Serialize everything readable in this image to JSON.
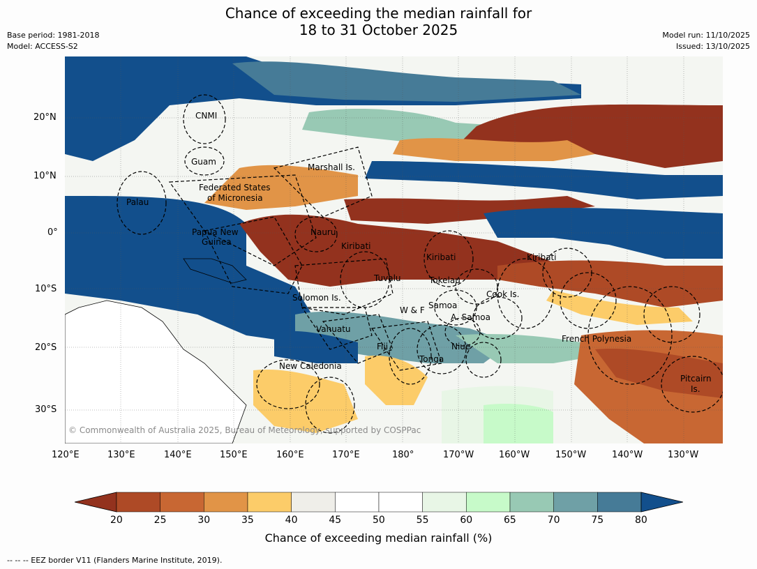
{
  "title_line1": "Chance of exceeding the median rainfall for",
  "title_line2": "18 to 31 October 2025",
  "meta": {
    "base_period": "Base period: 1981-2018",
    "model": "Model: ACCESS-S2",
    "model_run": "Model run: 11/10/2025",
    "issued": "Issued: 13/10/2025"
  },
  "lat_ticks": [
    "20°N",
    "10°N",
    "0°",
    "10°S",
    "20°S",
    "30°S"
  ],
  "lon_ticks": [
    "120°E",
    "130°E",
    "140°E",
    "150°E",
    "160°E",
    "170°E",
    "180°",
    "170°W",
    "160°W",
    "150°W",
    "140°W",
    "130°W"
  ],
  "regions": [
    {
      "name": "CNMI"
    },
    {
      "name": "Guam"
    },
    {
      "name": "Marshall Is."
    },
    {
      "name": "Federated States"
    },
    {
      "name": "of Micronesia"
    },
    {
      "name": "Palau"
    },
    {
      "name": "Papua New"
    },
    {
      "name": "Guinea"
    },
    {
      "name": "Nauru"
    },
    {
      "name": "Kiribati"
    },
    {
      "name": "Kiribati"
    },
    {
      "name": "Kiribati"
    },
    {
      "name": "Tuvalu"
    },
    {
      "name": "Tokelau"
    },
    {
      "name": "Cook Is."
    },
    {
      "name": "Solomon Is."
    },
    {
      "name": "W & F"
    },
    {
      "name": "Samoa"
    },
    {
      "name": "A. Samoa"
    },
    {
      "name": "Vanuatu"
    },
    {
      "name": "Fiji"
    },
    {
      "name": "Niue"
    },
    {
      "name": "Tonga"
    },
    {
      "name": "French Polynesia"
    },
    {
      "name": "New Caledonia"
    },
    {
      "name": "Pitcairn"
    },
    {
      "name": "Is."
    }
  ],
  "copyright": "© Commonwealth of Australia 2025, Bureau of Meteorology, supported by COSPPac",
  "colorbar": {
    "title": "Chance of exceeding median rainfall (%)",
    "ticks": [
      "20",
      "25",
      "30",
      "35",
      "40",
      "45",
      "50",
      "55",
      "60",
      "65",
      "70",
      "75",
      "80"
    ],
    "colors": [
      "#93321e",
      "#ae4a26",
      "#c86733",
      "#e19447",
      "#fccc69",
      "#efeee9",
      "#ffffff",
      "#ffffff",
      "#e8f6e6",
      "#c7fac9",
      "#98c9b4",
      "#6fa0a6",
      "#467b97",
      "#124f8c"
    ]
  },
  "footnote": "--  --  -- EEZ border V11 (Flanders Marine Institute, 2019)."
}
